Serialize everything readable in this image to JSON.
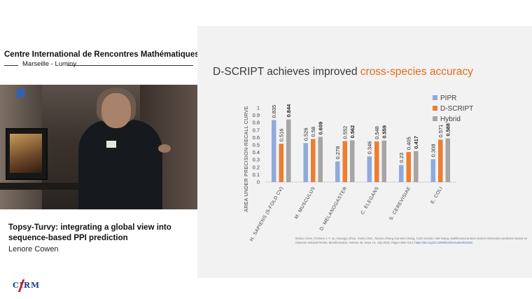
{
  "left": {
    "institute_title": "Centre International de Rencontres Mathématiques",
    "institute_location": "Marseille - Luminy",
    "talk_title": "Topsy-Turvy: integrating a global view into sequence-based PPI prediction",
    "speaker": "Lenore Cowen",
    "logo_text": "CIRM"
  },
  "slide": {
    "title_prefix": "D-SCRIPT achieves improved ",
    "title_accent": "cross-species accuracy",
    "citation_text": "Muhao Chen, Chelsea J.-T. Ju, Guangyu Zhou, Xuelu Chen, Tianran Zhang, Kai-Wei Chang, Carlo Zaniolo, Wei Wang, Multifaceted protein–protein interaction prediction based on Siamese residual RCNN, Bioinformatics, Volume 35, Issue 14, July 2019, Pages i305–i314, ",
    "citation_link": "https://doi.org/10.1093/bioinformatics/btz328"
  },
  "chart_data": {
    "type": "bar",
    "title": "",
    "xlabel": "",
    "ylabel": "AREA UNDER PRECISION-RECALL CURVE",
    "ylim": [
      0,
      1
    ],
    "yticks": [
      "0",
      "0.1",
      "0.2",
      "0.3",
      "0.4",
      "0.5",
      "0.6",
      "0.7",
      "0.8",
      "0.9",
      "1"
    ],
    "categories": [
      "H. SAPIENS (5-FOLD CV)",
      "M. MUSCULUS",
      "D. MELANOGASTER",
      "C. ELEGANS",
      "S. CEREVISIAE",
      "E. COLI"
    ],
    "series": [
      {
        "name": "PIPR",
        "color": "#8faadc",
        "values": [
          0.835,
          0.526,
          0.278,
          0.346,
          0.23,
          0.308
        ],
        "labels": [
          "0.835",
          "0.526",
          "0.278",
          "0.346",
          "0.23",
          "0.308"
        ],
        "bold": false
      },
      {
        "name": "D-SCRIPT",
        "color": "#ed7d31",
        "values": [
          0.516,
          0.58,
          0.552,
          0.548,
          0.405,
          0.571
        ],
        "labels": [
          "0.516",
          "0.58",
          "0.552",
          "0.548",
          "0.405",
          "0.571"
        ],
        "bold": false
      },
      {
        "name": "Hybrid",
        "color": "#a5a5a5",
        "values": [
          0.844,
          0.609,
          0.562,
          0.559,
          0.417,
          0.588
        ],
        "labels": [
          "0.844",
          "0.609",
          "0.562",
          "0.559",
          "0.417",
          "0.588"
        ],
        "bold": true
      }
    ],
    "legend_position": "top-right",
    "grid": false
  }
}
